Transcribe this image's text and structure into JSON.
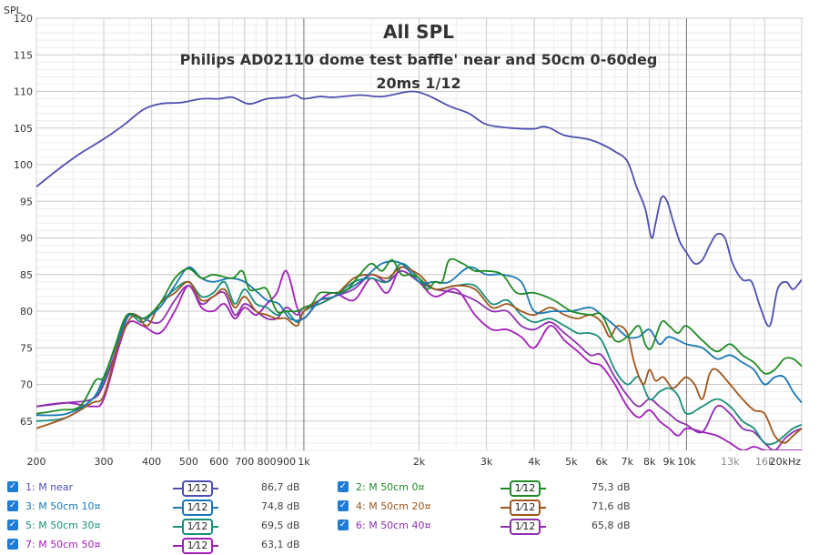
{
  "chart_data": {
    "type": "line",
    "title": "All SPL",
    "subtitle_lines": [
      "Philips AD02110 dome test baffle' near and 50cm 0-60deg",
      "20ms 1/12"
    ],
    "ylabel": "SPL",
    "xscale": "log",
    "xlim": [
      200,
      20000
    ],
    "ylim": [
      61,
      120
    ],
    "yticks": [
      65,
      70,
      75,
      80,
      85,
      90,
      95,
      100,
      105,
      110,
      115,
      120
    ],
    "xticks": [
      {
        "v": 200,
        "label": "200",
        "major": true
      },
      {
        "v": 300,
        "label": "300",
        "major": true
      },
      {
        "v": 400,
        "label": "400",
        "major": true
      },
      {
        "v": 500,
        "label": "500",
        "major": true
      },
      {
        "v": 600,
        "label": "600",
        "major": true
      },
      {
        "v": 700,
        "label": "700",
        "major": true
      },
      {
        "v": 800,
        "label": "800",
        "major": true
      },
      {
        "v": 900,
        "label": "900",
        "major": true
      },
      {
        "v": 1000,
        "label": "1k",
        "major": true
      },
      {
        "v": 2000,
        "label": "2k",
        "major": true
      },
      {
        "v": 3000,
        "label": "3k",
        "major": true
      },
      {
        "v": 4000,
        "label": "4k",
        "major": true
      },
      {
        "v": 5000,
        "label": "5k",
        "major": true
      },
      {
        "v": 6000,
        "label": "6k",
        "major": true
      },
      {
        "v": 7000,
        "label": "7k",
        "major": true
      },
      {
        "v": 8000,
        "label": "8k",
        "major": true
      },
      {
        "v": 9000,
        "label": "9k",
        "major": true
      },
      {
        "v": 10000,
        "label": "10k",
        "major": true
      },
      {
        "v": 13000,
        "label": "13k",
        "major": false
      },
      {
        "v": 16000,
        "label": "16k",
        "major": false
      },
      {
        "v": 20000,
        "label": "20kHz",
        "major": true
      }
    ],
    "grid": true,
    "legend_position": "bottom",
    "series": [
      {
        "name": "1: M near",
        "smoothing": "1⁄12",
        "level": "86,7 dB",
        "color": "#4f4fb0",
        "x": [
          200,
          230,
          260,
          300,
          340,
          380,
          420,
          480,
          540,
          600,
          650,
          720,
          800,
          900,
          950,
          1000,
          1100,
          1200,
          1400,
          1600,
          1900,
          2100,
          2400,
          2700,
          3000,
          3500,
          4000,
          4200,
          4400,
          4800,
          5500,
          6000,
          6500,
          7000,
          7400,
          7800,
          8100,
          8300,
          8600,
          8900,
          9200,
          9600,
          10000,
          10500,
          11000,
          11500,
          12000,
          12600,
          13200,
          14000,
          14800,
          15600,
          16500,
          17300,
          18200,
          19000,
          20000
        ],
        "y": [
          97,
          99.5,
          101.5,
          103.5,
          105.5,
          107.5,
          108.3,
          108.5,
          109,
          109,
          109.2,
          108.3,
          109,
          109.2,
          109.5,
          109,
          109.3,
          109.2,
          109.5,
          109.3,
          110,
          109.5,
          108,
          107,
          105.5,
          105,
          104.9,
          105.2,
          105,
          104,
          103.5,
          102.8,
          101.8,
          100.5,
          97,
          94,
          90,
          92,
          95.5,
          95,
          92.5,
          89.5,
          88,
          86.5,
          87,
          89,
          90.5,
          90,
          86.5,
          84.3,
          84,
          80.5,
          78,
          83,
          84,
          83,
          84.3
        ]
      },
      {
        "name": "2: M 50cm 0¤",
        "smoothing": "1⁄12",
        "level": "75,3 dB",
        "color": "#1f8b24",
        "x": [
          200,
          230,
          260,
          285,
          300,
          320,
          345,
          380,
          420,
          460,
          500,
          540,
          580,
          650,
          690,
          720,
          760,
          800,
          850,
          900,
          960,
          1000,
          1050,
          1100,
          1200,
          1300,
          1400,
          1500,
          1600,
          1700,
          1800,
          1900,
          2000,
          2100,
          2200,
          2300,
          2400,
          2600,
          2800,
          3000,
          3300,
          3600,
          4000,
          4500,
          5000,
          5600,
          6000,
          6500,
          7000,
          7500,
          7800,
          8100,
          8600,
          9000,
          9500,
          10000,
          11000,
          12000,
          13000,
          14000,
          15000,
          16000,
          17000,
          18000,
          19000,
          20000
        ],
        "y": [
          66,
          66.5,
          67,
          70.5,
          71,
          75,
          79.5,
          79,
          81,
          84.5,
          85.8,
          84.5,
          85,
          84.5,
          85.5,
          83,
          83,
          83,
          80,
          80,
          80,
          80.5,
          81,
          82.5,
          82.5,
          83,
          85,
          86.5,
          85.5,
          87,
          85,
          85,
          84.5,
          83,
          84,
          84,
          87,
          86.5,
          85.5,
          85.5,
          85,
          82.5,
          82.5,
          81.5,
          80,
          79.5,
          79.5,
          76,
          76.5,
          78,
          75.5,
          75,
          78.5,
          78,
          77,
          78,
          76,
          74.5,
          75.5,
          74,
          73,
          71.5,
          72,
          73.5,
          73.5,
          72.5
        ]
      },
      {
        "name": "3: M 50cm 10¤",
        "smoothing": "1⁄12",
        "level": "74,8 dB",
        "color": "#1a78b4",
        "x": [
          200,
          240,
          280,
          300,
          330,
          350,
          380,
          420,
          460,
          500,
          540,
          580,
          640,
          700,
          760,
          800,
          860,
          920,
          1000,
          1100,
          1200,
          1400,
          1600,
          1800,
          2000,
          2200,
          2400,
          2700,
          3000,
          3300,
          3700,
          4000,
          4500,
          5000,
          5600,
          6000,
          6500,
          7000,
          7500,
          8000,
          8500,
          9000,
          10000,
          11000,
          12000,
          13000,
          14000,
          15000,
          16000,
          17000,
          18000,
          19000,
          20000
        ],
        "y": [
          65.8,
          66,
          68,
          71,
          76.5,
          79.5,
          79,
          80.5,
          83.5,
          86,
          84.5,
          84,
          84.5,
          84,
          82.5,
          81.5,
          81,
          79,
          79,
          81.5,
          82,
          84,
          86.5,
          86.5,
          84,
          84,
          84,
          86,
          85,
          85,
          84,
          80,
          80,
          80,
          80.5,
          79.5,
          78,
          76.5,
          76.5,
          77.5,
          75.5,
          76.5,
          75.5,
          75,
          73.5,
          74,
          73,
          72,
          70,
          71,
          71,
          69,
          67.5
        ]
      },
      {
        "name": "4: M 50cm 20¤",
        "smoothing": "1⁄12",
        "level": "71,6 dB",
        "color": "#a0561c",
        "x": [
          200,
          240,
          280,
          300,
          330,
          360,
          390,
          420,
          460,
          500,
          540,
          580,
          620,
          660,
          700,
          750,
          800,
          850,
          900,
          960,
          1000,
          1100,
          1200,
          1350,
          1500,
          1650,
          1800,
          2000,
          2200,
          2500,
          2800,
          3100,
          3400,
          3700,
          4000,
          4400,
          4800,
          5200,
          5600,
          6000,
          6300,
          6600,
          7000,
          7300,
          7700,
          8000,
          8300,
          8700,
          9200,
          9700,
          10000,
          10500,
          11000,
          11500,
          12000,
          13000,
          14000,
          15000,
          16000,
          17000,
          18000,
          19000,
          20000
        ],
        "y": [
          64,
          65.5,
          67.5,
          68.5,
          76,
          79.5,
          78,
          81,
          82.5,
          84,
          81.5,
          82,
          83,
          80.5,
          82,
          80,
          79.5,
          79,
          79,
          78,
          80,
          81.5,
          82,
          84.5,
          85,
          84.5,
          86,
          85,
          83,
          83.5,
          83,
          80.5,
          81,
          80,
          79.5,
          80.5,
          79.5,
          79,
          79.5,
          78.5,
          76.5,
          78,
          77,
          73,
          70,
          72,
          70.5,
          71,
          69.5,
          70.5,
          71,
          70,
          68,
          71.5,
          72,
          70,
          68,
          66.5,
          66,
          63,
          62,
          63,
          64
        ]
      },
      {
        "name": "5: M 50cm 30¤",
        "smoothing": "1⁄12",
        "level": "69,5 dB",
        "color": "#1a8f7a",
        "x": [
          200,
          240,
          280,
          300,
          330,
          350,
          380,
          420,
          460,
          500,
          540,
          580,
          620,
          660,
          700,
          750,
          800,
          850,
          900,
          960,
          1000,
          1100,
          1200,
          1350,
          1500,
          1650,
          1800,
          2000,
          2200,
          2500,
          2800,
          3100,
          3400,
          3700,
          4000,
          4400,
          4800,
          5200,
          5600,
          6000,
          6500,
          7000,
          7500,
          8000,
          8500,
          9000,
          9500,
          10000,
          11000,
          12000,
          13000,
          14000,
          15000,
          16000,
          17000,
          18000,
          19000,
          20000
        ],
        "y": [
          65,
          65.5,
          68,
          70.5,
          77,
          79.5,
          78.5,
          81,
          83,
          84,
          82,
          82.5,
          84,
          81,
          83,
          81,
          80.5,
          79.5,
          80,
          78.5,
          80,
          81,
          82,
          84,
          84.5,
          84,
          86.5,
          84.5,
          83,
          83.5,
          83.5,
          81,
          81.5,
          79.5,
          78.5,
          79,
          78,
          77,
          77,
          76,
          72,
          70,
          71,
          68,
          69,
          69.5,
          68.5,
          66,
          67,
          68,
          67,
          65,
          64,
          62,
          62,
          63,
          64,
          64.5
        ]
      },
      {
        "name": "6: M 50cm 40¤",
        "smoothing": "1⁄12",
        "level": "65,8 dB",
        "color": "#8e2fb0",
        "x": [
          200,
          240,
          280,
          300,
          330,
          350,
          380,
          420,
          460,
          500,
          540,
          580,
          620,
          660,
          700,
          750,
          800,
          850,
          900,
          960,
          1000,
          1100,
          1200,
          1350,
          1500,
          1650,
          1800,
          2000,
          2200,
          2500,
          2800,
          3100,
          3400,
          3700,
          4000,
          4400,
          4800,
          5200,
          5600,
          6000,
          6500,
          7000,
          7500,
          8000,
          8500,
          9000,
          9500,
          10000,
          11000,
          12000,
          13000,
          14000,
          15000,
          16000,
          17000,
          18000,
          19000,
          20000
        ],
        "y": [
          67,
          67.5,
          68,
          70,
          76,
          79.5,
          79,
          78.5,
          81.5,
          83.5,
          81,
          82,
          82.5,
          79.5,
          81,
          80,
          79,
          79,
          80.5,
          79.5,
          80.5,
          81,
          82,
          83,
          85,
          84,
          85.5,
          84,
          83,
          82.5,
          81.5,
          80,
          80,
          78,
          77.5,
          78.5,
          77,
          75.5,
          74,
          74,
          71,
          68.5,
          67,
          68,
          67,
          66,
          65,
          64.5,
          63.5,
          67,
          66,
          64,
          63.5,
          62,
          61,
          62.5,
          63.5,
          64
        ]
      },
      {
        "name": "7: M 50cm 50¤",
        "smoothing": "1⁄12",
        "level": "63,1 dB",
        "color": "#a21fb8",
        "x": [
          200,
          240,
          280,
          300,
          330,
          350,
          380,
          420,
          460,
          500,
          540,
          580,
          620,
          660,
          700,
          750,
          800,
          850,
          900,
          960,
          1000,
          1100,
          1200,
          1350,
          1500,
          1650,
          1800,
          2000,
          2200,
          2500,
          2800,
          3100,
          3400,
          3700,
          4000,
          4400,
          4800,
          5200,
          5600,
          6000,
          6500,
          7000,
          7500,
          8000,
          8500,
          9000,
          9500,
          10000,
          11000,
          12000,
          13000,
          14000,
          15000,
          16000,
          17000,
          18000,
          19000,
          20000
        ],
        "y": [
          67,
          67.5,
          67,
          68,
          75.5,
          78.5,
          78,
          77,
          80,
          83.5,
          80.5,
          80,
          81,
          79,
          80.5,
          79.5,
          81,
          82.5,
          85.5,
          80.5,
          79,
          81.5,
          82.5,
          81.5,
          84.5,
          82.5,
          86,
          84,
          82,
          83,
          79.5,
          77.5,
          77.5,
          76.5,
          75,
          78,
          76,
          74.5,
          73,
          72.5,
          70,
          67,
          65.5,
          66.5,
          65,
          64,
          63,
          64,
          63.5,
          63,
          62,
          61,
          61.5,
          61,
          61,
          61,
          61,
          61
        ]
      }
    ]
  }
}
